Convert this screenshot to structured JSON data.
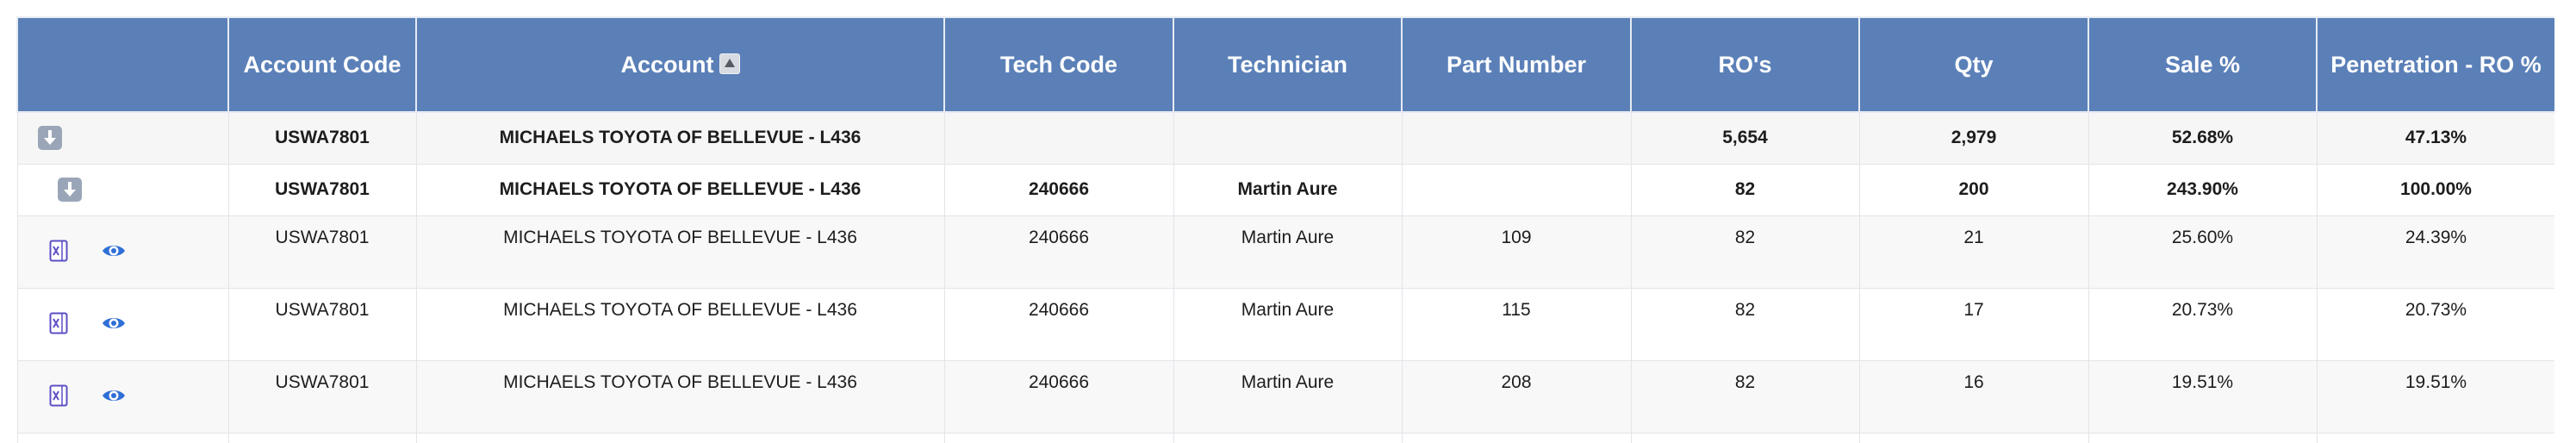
{
  "table": {
    "headers": [
      "",
      "Account Code",
      "Account",
      "Tech Code",
      "Technician",
      "Part Number",
      "RO's",
      "Qty",
      "Sale %",
      "Penetration - RO %"
    ],
    "summary_rows": [
      {
        "account_code": "USWA7801",
        "account": "MICHAELS TOYOTA OF BELLEVUE - L436",
        "tech_code": "",
        "technician": "",
        "part_number": "",
        "ros": "5,654",
        "qty": "2,979",
        "sale_pct": "52.68%",
        "penetration": "47.13%"
      },
      {
        "account_code": "USWA7801",
        "account": "MICHAELS TOYOTA OF BELLEVUE - L436",
        "tech_code": "240666",
        "technician": "Martin Aure",
        "part_number": "",
        "ros": "82",
        "qty": "200",
        "sale_pct": "243.90%",
        "penetration": "100.00%"
      }
    ],
    "detail_rows": [
      {
        "account_code": "USWA7801",
        "account": "MICHAELS TOYOTA OF BELLEVUE - L436",
        "tech_code": "240666",
        "technician": "Martin Aure",
        "part_number": "109",
        "ros": "82",
        "qty": "21",
        "sale_pct": "25.60%",
        "penetration": "24.39%"
      },
      {
        "account_code": "USWA7801",
        "account": "MICHAELS TOYOTA OF BELLEVUE - L436",
        "tech_code": "240666",
        "technician": "Martin Aure",
        "part_number": "115",
        "ros": "82",
        "qty": "17",
        "sale_pct": "20.73%",
        "penetration": "20.73%"
      },
      {
        "account_code": "USWA7801",
        "account": "MICHAELS TOYOTA OF BELLEVUE - L436",
        "tech_code": "240666",
        "technician": "Martin Aure",
        "part_number": "208",
        "ros": "82",
        "qty": "16",
        "sale_pct": "19.51%",
        "penetration": "19.51%"
      }
    ],
    "icons": {
      "expand": "expand-down-arrow-icon",
      "export": "excel-export-icon",
      "view": "eye-view-icon",
      "sort": "sort-ascending-icon"
    },
    "colors": {
      "header_bg": "#5b80b8",
      "header_text": "#ffffff",
      "icon_purple": "#5b4fc4",
      "icon_blue": "#2f6fd6"
    }
  }
}
